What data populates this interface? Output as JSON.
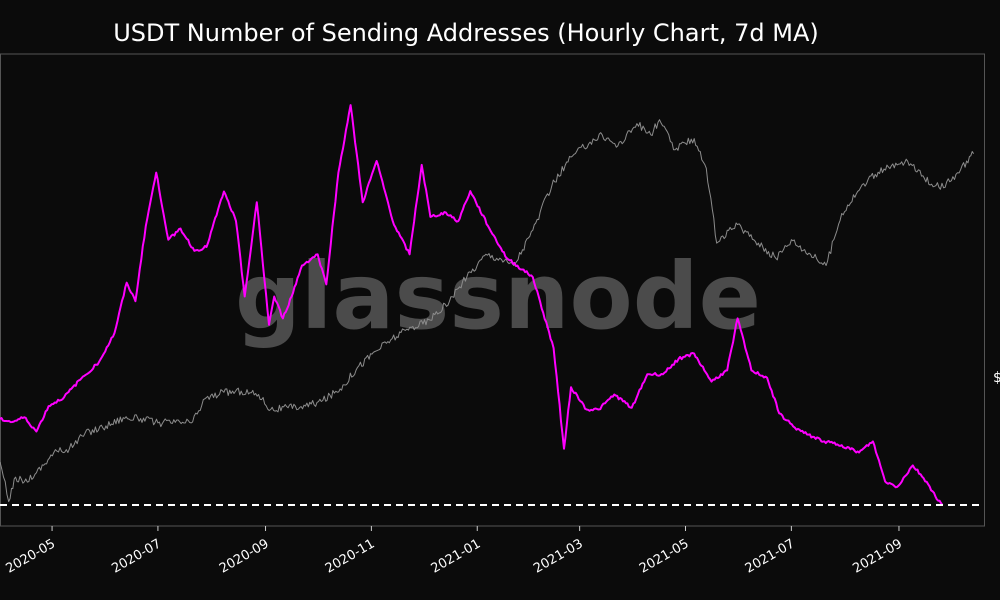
{
  "chart_data": {
    "type": "line",
    "title": "USDT Number of Sending Addresses (Hourly Chart, 7d MA)",
    "watermark": "glassnode",
    "right_axis_label": "$",
    "x_ticks": [
      "2020-05",
      "2020-07",
      "2020-09",
      "2020-11",
      "2021-01",
      "2021-03",
      "2021-05",
      "2021-07",
      "2021-09"
    ],
    "x_range": [
      "2020-04-01",
      "2021-10-20"
    ],
    "y_range": [
      0,
      100
    ],
    "grid": false,
    "colors": {
      "sending_addresses": "#ff00ff",
      "price": "#8c8c8c",
      "reference_line": "#ffffff",
      "background": "#0b0b0b",
      "frame": "#555555"
    },
    "series": [
      {
        "key": "sending_addresses",
        "points": [
          [
            "2020-04-01",
            20.0
          ],
          [
            "2020-04-08",
            19.3
          ],
          [
            "2020-04-15",
            20.4
          ],
          [
            "2020-04-22",
            17.1
          ],
          [
            "2020-04-29",
            23.0
          ],
          [
            "2020-05-08",
            25.1
          ],
          [
            "2020-05-18",
            29.5
          ],
          [
            "2020-05-28",
            33.2
          ],
          [
            "2020-06-06",
            40.0
          ],
          [
            "2020-06-13",
            51.7
          ],
          [
            "2020-06-18",
            47.4
          ],
          [
            "2020-06-24",
            64.9
          ],
          [
            "2020-06-30",
            77.3
          ],
          [
            "2020-07-07",
            61.7
          ],
          [
            "2020-07-14",
            64.3
          ],
          [
            "2020-07-22",
            59.1
          ],
          [
            "2020-07-29",
            60.0
          ],
          [
            "2020-08-08",
            72.9
          ],
          [
            "2020-08-15",
            66.0
          ],
          [
            "2020-08-20",
            48.5
          ],
          [
            "2020-08-27",
            70.4
          ],
          [
            "2020-09-03",
            41.9
          ],
          [
            "2020-09-06",
            48.5
          ],
          [
            "2020-09-11",
            43.4
          ],
          [
            "2020-09-16",
            48.5
          ],
          [
            "2020-09-22",
            55.7
          ],
          [
            "2020-10-01",
            58.3
          ],
          [
            "2020-10-06",
            51.3
          ],
          [
            "2020-10-13",
            77.3
          ],
          [
            "2020-10-20",
            93.0
          ],
          [
            "2020-10-27",
            70.4
          ],
          [
            "2020-11-04",
            80.0
          ],
          [
            "2020-11-14",
            65.2
          ],
          [
            "2020-11-23",
            58.3
          ],
          [
            "2020-11-30",
            79.1
          ],
          [
            "2020-12-05",
            67.0
          ],
          [
            "2020-12-14",
            68.0
          ],
          [
            "2020-12-21",
            66.0
          ],
          [
            "2020-12-28",
            73.0
          ],
          [
            "2021-01-08",
            64.3
          ],
          [
            "2021-01-18",
            57.4
          ],
          [
            "2021-02-02",
            53.0
          ],
          [
            "2021-02-14",
            36.5
          ],
          [
            "2021-02-20",
            13.1
          ],
          [
            "2021-02-24",
            27.4
          ],
          [
            "2021-03-05",
            22.2
          ],
          [
            "2021-03-12",
            22.2
          ],
          [
            "2021-03-21",
            25.7
          ],
          [
            "2021-03-31",
            22.6
          ],
          [
            "2021-04-09",
            30.4
          ],
          [
            "2021-04-18",
            30.4
          ],
          [
            "2021-04-27",
            34.0
          ],
          [
            "2021-05-06",
            35.2
          ],
          [
            "2021-05-16",
            28.7
          ],
          [
            "2021-05-25",
            31.3
          ],
          [
            "2021-05-31",
            43.4
          ],
          [
            "2021-06-08",
            31.3
          ],
          [
            "2021-06-17",
            29.6
          ],
          [
            "2021-06-24",
            21.3
          ],
          [
            "2021-07-03",
            18.0
          ],
          [
            "2021-07-10",
            16.4
          ],
          [
            "2021-07-20",
            14.8
          ],
          [
            "2021-07-30",
            13.9
          ],
          [
            "2021-08-09",
            12.2
          ],
          [
            "2021-08-17",
            14.8
          ],
          [
            "2021-08-24",
            5.5
          ],
          [
            "2021-08-31",
            4.2
          ],
          [
            "2021-09-09",
            9.2
          ],
          [
            "2021-09-17",
            5.4
          ],
          [
            "2021-09-22",
            2.0
          ],
          [
            "2021-09-26",
            0.0
          ]
        ]
      },
      {
        "key": "price",
        "points": [
          [
            "2020-04-01",
            10.0
          ],
          [
            "2020-04-03",
            6.5
          ],
          [
            "2020-04-06",
            0.8
          ],
          [
            "2020-04-10",
            6.5
          ],
          [
            "2020-04-15",
            5.4
          ],
          [
            "2020-04-22",
            7.5
          ],
          [
            "2020-05-02",
            12.2
          ],
          [
            "2020-05-11",
            13.1
          ],
          [
            "2020-05-20",
            16.7
          ],
          [
            "2020-06-01",
            18.4
          ],
          [
            "2020-06-11",
            20.3
          ],
          [
            "2020-06-21",
            20.1
          ],
          [
            "2020-07-01",
            19.1
          ],
          [
            "2020-07-11",
            19.2
          ],
          [
            "2020-07-21",
            19.3
          ],
          [
            "2020-07-28",
            24.7
          ],
          [
            "2020-08-08",
            26.2
          ],
          [
            "2020-08-18",
            26.5
          ],
          [
            "2020-08-28",
            25.7
          ],
          [
            "2020-09-04",
            22.2
          ],
          [
            "2020-09-14",
            22.6
          ],
          [
            "2020-09-24",
            23.0
          ],
          [
            "2020-10-04",
            24.3
          ],
          [
            "2020-10-14",
            27.0
          ],
          [
            "2020-10-24",
            32.0
          ],
          [
            "2020-11-03",
            35.7
          ],
          [
            "2020-11-13",
            38.7
          ],
          [
            "2020-11-24",
            41.3
          ],
          [
            "2020-12-05",
            43.0
          ],
          [
            "2020-12-16",
            47.4
          ],
          [
            "2020-12-26",
            53.0
          ],
          [
            "2021-01-06",
            58.3
          ],
          [
            "2021-01-14",
            57.4
          ],
          [
            "2021-01-22",
            55.7
          ],
          [
            "2021-02-02",
            63.9
          ],
          [
            "2021-02-13",
            74.3
          ],
          [
            "2021-02-24",
            80.9
          ],
          [
            "2021-03-07",
            84.4
          ],
          [
            "2021-03-14",
            86.1
          ],
          [
            "2021-03-23",
            83.5
          ],
          [
            "2021-04-03",
            88.7
          ],
          [
            "2021-04-11",
            86.1
          ],
          [
            "2021-04-16",
            89.6
          ],
          [
            "2021-04-25",
            82.6
          ],
          [
            "2021-05-06",
            85.2
          ],
          [
            "2021-05-13",
            78.3
          ],
          [
            "2021-05-19",
            60.9
          ],
          [
            "2021-05-31",
            65.2
          ],
          [
            "2021-06-12",
            60.9
          ],
          [
            "2021-06-22",
            57.4
          ],
          [
            "2021-07-01",
            61.7
          ],
          [
            "2021-07-12",
            58.3
          ],
          [
            "2021-07-21",
            55.7
          ],
          [
            "2021-07-30",
            67.8
          ],
          [
            "2021-08-10",
            73.9
          ],
          [
            "2021-08-20",
            77.4
          ],
          [
            "2021-08-31",
            79.1
          ],
          [
            "2021-09-06",
            80.0
          ],
          [
            "2021-09-14",
            76.5
          ],
          [
            "2021-09-24",
            73.9
          ],
          [
            "2021-10-03",
            75.7
          ],
          [
            "2021-10-10",
            80.0
          ],
          [
            "2021-10-14",
            81.7
          ]
        ]
      }
    ],
    "reference_line": {
      "y": 0,
      "style": "dashed"
    }
  }
}
